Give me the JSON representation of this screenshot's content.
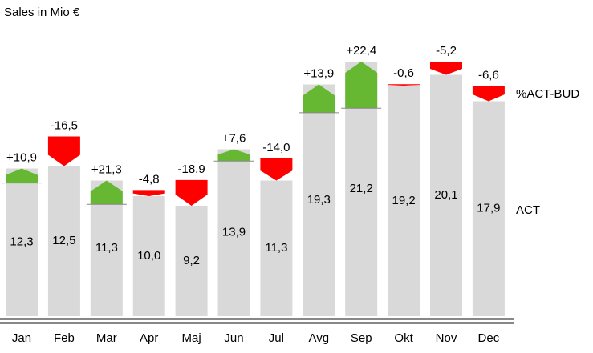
{
  "chart_data": {
    "type": "bar",
    "title": "Sales in Mio €",
    "categories": [
      "Jan",
      "Feb",
      "Mar",
      "Apr",
      "Maj",
      "Jun",
      "Jul",
      "Avg",
      "Sep",
      "Okt",
      "Nov",
      "Dec"
    ],
    "series": [
      {
        "name": "ACT",
        "color": "#d9d9d9",
        "values": [
          12.3,
          12.5,
          11.3,
          10.0,
          9.2,
          13.9,
          11.3,
          19.3,
          21.2,
          19.2,
          20.1,
          17.9
        ],
        "value_labels": [
          "12,3",
          "12,5",
          "11,3",
          "10,0",
          "9,2",
          "13,9",
          "11,3",
          "19,3",
          "21,2",
          "19,2",
          "20,1",
          "17,9"
        ]
      },
      {
        "name": "%ACT-BUD",
        "positive_color": "#66b832",
        "negative_color": "#ff0000",
        "values": [
          10.9,
          -16.5,
          21.3,
          -4.8,
          -18.9,
          7.6,
          -14.0,
          13.9,
          22.4,
          -0.6,
          -5.2,
          -6.6
        ],
        "value_labels": [
          "+10,9",
          "-16,5",
          "+21,3",
          "-4,8",
          "-18,9",
          "+7,6",
          "-14,0",
          "+13,9",
          "+22,4",
          "-0,6",
          "-5,2",
          "-6,6"
        ]
      }
    ]
  }
}
